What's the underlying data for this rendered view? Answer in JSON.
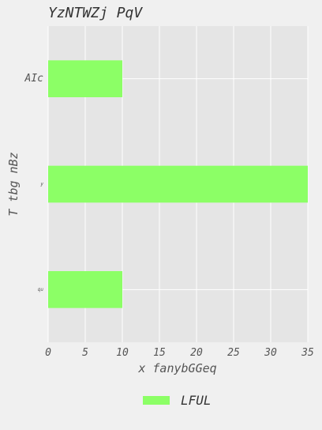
{
  "chart_data": {
    "type": "bar",
    "orientation": "horizontal",
    "title": "YzNTWZj PqV",
    "xlabel": "x fanybGGeq",
    "ylabel": "T tbg nBz",
    "categories": [
      "AIc",
      "y",
      "qu"
    ],
    "series": [
      {
        "name": "LFUL",
        "values": [
          10,
          35,
          10
        ],
        "color": "#8cff66"
      }
    ],
    "xlim": [
      0,
      35
    ],
    "xticks": [
      0,
      5,
      10,
      15,
      20,
      25,
      30,
      35
    ],
    "grid": true,
    "legend_position": "bottom-center",
    "colors": {
      "background": "#f0f0f0",
      "plot_background": "#e5e5e5",
      "grid": "#ffffff"
    }
  }
}
